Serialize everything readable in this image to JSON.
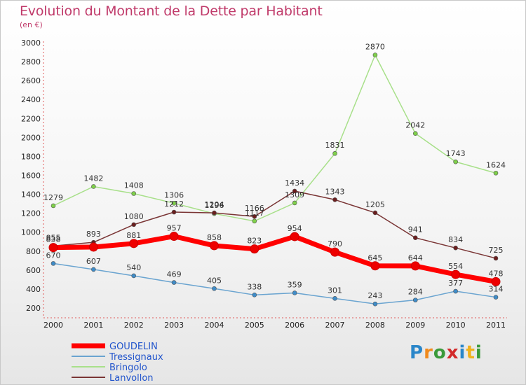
{
  "title": "Evolution du Montant de la Dette par Habitant",
  "subtitle": "(en €)",
  "logo": {
    "letters": [
      {
        "ch": "P",
        "color": "#2a86c9"
      },
      {
        "ch": "r",
        "color": "#f08a1c"
      },
      {
        "ch": "o",
        "color": "#3a9a3a"
      },
      {
        "ch": "x",
        "color": "#d22a2a"
      },
      {
        "ch": "i",
        "color": "#2a86c9"
      },
      {
        "ch": "t",
        "color": "#f0b21c"
      },
      {
        "ch": "i",
        "color": "#3a9a3a"
      }
    ]
  },
  "chart_data": {
    "type": "line",
    "title": "Evolution du Montant de la Dette par Habitant",
    "subtitle": "(en €)",
    "x": [
      "2000",
      "2001",
      "2002",
      "2003",
      "2004",
      "2005",
      "2006",
      "2007",
      "2008",
      "2009",
      "2010",
      "2011"
    ],
    "yticks": [
      200,
      400,
      600,
      800,
      1000,
      1200,
      1400,
      1600,
      1800,
      2000,
      2200,
      2400,
      2600,
      2800,
      3000
    ],
    "ylim": [
      200,
      3000
    ],
    "grid": false,
    "legend_position": "bottom-left",
    "series": [
      {
        "name": "GOUDELIN",
        "color": "#ff0000",
        "marker": "#ee0000",
        "values": [
          838,
          843,
          881,
          957,
          858,
          823,
          954,
          790,
          645,
          644,
          554,
          478
        ],
        "labels": [
          "838",
          "",
          "881",
          "957",
          "858",
          "823",
          "954",
          "790",
          "645",
          "644",
          "554",
          "478"
        ]
      },
      {
        "name": "Tressignaux",
        "color": "#6aa4d0",
        "marker": "#3f8cc8",
        "values": [
          670,
          607,
          540,
          469,
          405,
          338,
          359,
          301,
          243,
          284,
          377,
          314
        ],
        "labels": [
          "670",
          "607",
          "540",
          "469",
          "405",
          "338",
          "359",
          "301",
          "243",
          "284",
          "377",
          "314"
        ]
      },
      {
        "name": "Bringolo",
        "color": "#a8e08a",
        "marker": "#7fd04a",
        "values": [
          1279,
          1482,
          1408,
          1306,
          1196,
          1117,
          1309,
          1831,
          2870,
          2042,
          1743,
          1624
        ],
        "labels": [
          "1279",
          "1482",
          "1408",
          "1306",
          "1196",
          "1117",
          "1309",
          "1831",
          "2870",
          "2042",
          "1743",
          "1624"
        ]
      },
      {
        "name": "Lanvollon",
        "color": "#7a3535",
        "marker": "#6b1e1e",
        "values": [
          855,
          893,
          1080,
          1212,
          1204,
          1166,
          1434,
          1343,
          1205,
          941,
          834,
          725
        ],
        "labels": [
          "855",
          "893",
          "1080",
          "1212",
          "1204",
          "1166",
          "1434",
          "1343",
          "1205",
          "941",
          "834",
          "725"
        ]
      }
    ]
  }
}
